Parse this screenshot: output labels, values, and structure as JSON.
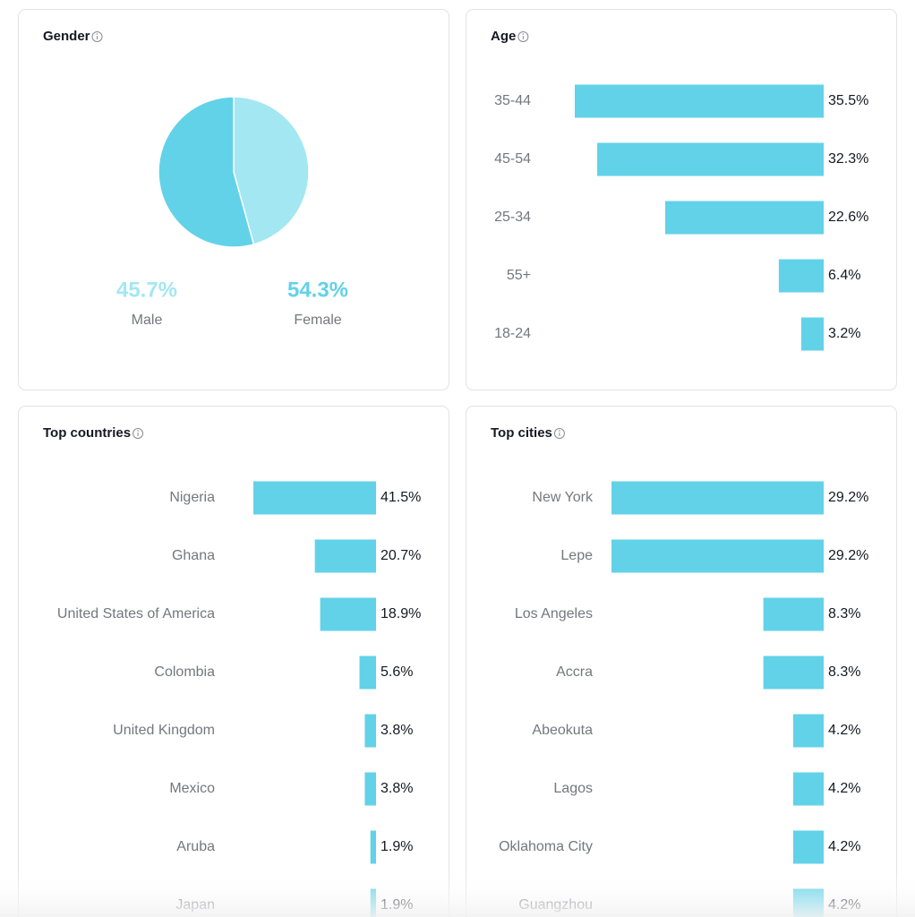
{
  "chart_data": [
    {
      "type": "pie",
      "title": "Gender",
      "categories": [
        "Male",
        "Female"
      ],
      "values": [
        45.7,
        54.3
      ],
      "value_labels": [
        "45.7%",
        "54.3%"
      ],
      "colors": [
        "#a3e7f2",
        "#62d2e8"
      ]
    },
    {
      "type": "hbar",
      "title": "Age",
      "categories": [
        "35-44",
        "45-54",
        "25-34",
        "55+",
        "18-24"
      ],
      "values": [
        35.5,
        32.3,
        22.6,
        6.4,
        3.2
      ],
      "value_labels": [
        "35.5%",
        "32.3%",
        "22.6%",
        "6.4%",
        "3.2%"
      ],
      "color": "#62d2e8"
    },
    {
      "type": "hbar",
      "title": "Top countries",
      "categories": [
        "Nigeria",
        "Ghana",
        "United States of America",
        "Colombia",
        "United Kingdom",
        "Mexico",
        "Aruba",
        "Japan"
      ],
      "values": [
        41.5,
        20.7,
        18.9,
        5.6,
        3.8,
        3.8,
        1.9,
        1.9
      ],
      "value_labels": [
        "41.5%",
        "20.7%",
        "18.9%",
        "5.6%",
        "3.8%",
        "3.8%",
        "1.9%",
        "1.9%"
      ],
      "color": "#62d2e8"
    },
    {
      "type": "hbar",
      "title": "Top cities",
      "categories": [
        "New York",
        "Lepe",
        "Los Angeles",
        "Accra",
        "Abeokuta",
        "Lagos",
        "Oklahoma City",
        "Guangzhou"
      ],
      "values": [
        29.2,
        29.2,
        8.3,
        8.3,
        4.2,
        4.2,
        4.2,
        4.2
      ],
      "value_labels": [
        "29.2%",
        "29.2%",
        "8.3%",
        "8.3%",
        "4.2%",
        "4.2%",
        "4.2%",
        "4.2%"
      ],
      "color": "#62d2e8"
    }
  ]
}
